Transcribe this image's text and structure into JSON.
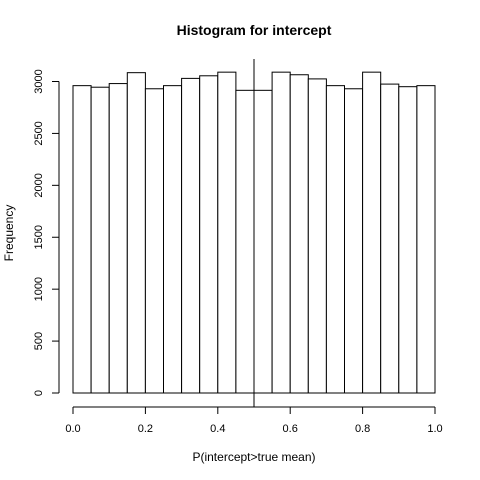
{
  "chart_data": {
    "type": "bar",
    "title": "Histogram for intercept",
    "xlabel": "P(intercept>true mean)",
    "ylabel": "Frequency",
    "bin_edges": [
      0.0,
      0.05,
      0.1,
      0.15,
      0.2,
      0.25,
      0.3,
      0.35,
      0.4,
      0.45,
      0.5,
      0.55,
      0.6,
      0.65,
      0.7,
      0.75,
      0.8,
      0.85,
      0.9,
      0.95,
      1.0
    ],
    "values": [
      2960,
      2945,
      2980,
      3085,
      2930,
      2960,
      3030,
      3055,
      3090,
      2915,
      2915,
      3090,
      3065,
      3025,
      2960,
      2930,
      3090,
      2975,
      2950,
      2960
    ],
    "xlim": [
      0.0,
      1.0
    ],
    "ylim": [
      0,
      3000
    ],
    "xticks": [
      0.0,
      0.2,
      0.4,
      0.6,
      0.8,
      1.0
    ],
    "xtick_labels": [
      "0.0",
      "0.2",
      "0.4",
      "0.6",
      "0.8",
      "1.0"
    ],
    "yticks": [
      0,
      500,
      1000,
      1500,
      2000,
      2500,
      3000
    ],
    "ytick_labels": [
      "0",
      "500",
      "1000",
      "1500",
      "2000",
      "2500",
      "3000"
    ],
    "reference_line_x": 0.5,
    "grid": false,
    "legend": "none"
  }
}
